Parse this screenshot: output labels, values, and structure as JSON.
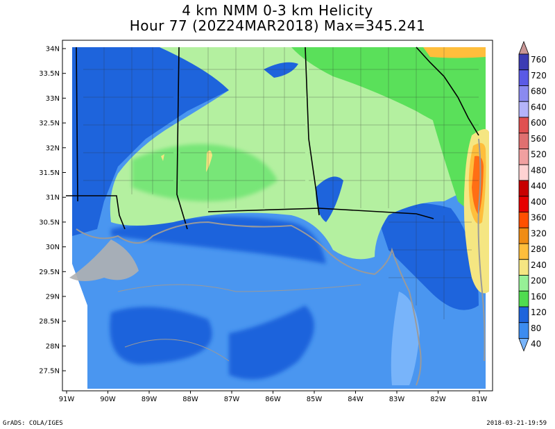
{
  "title": {
    "line1": "4 km NMM 0-3 km Helicity",
    "line2": "Hour 77 (20Z24MAR2018) Max=345.241"
  },
  "map": {
    "lat_labels": [
      "34N",
      "33.5N",
      "33N",
      "32.5N",
      "32N",
      "31.5N",
      "31N",
      "30.5N",
      "30N",
      "29.5N",
      "29N",
      "28.5N",
      "28N",
      "27.5N"
    ],
    "lon_labels": [
      "91W",
      "90W",
      "89W",
      "88W",
      "87W",
      "86W",
      "85W",
      "84W",
      "83W",
      "82W",
      "81W"
    ]
  },
  "colorbar": {
    "levels": [
      "760",
      "720",
      "680",
      "640",
      "600",
      "560",
      "520",
      "480",
      "440",
      "400",
      "360",
      "320",
      "280",
      "240",
      "200",
      "160",
      "120",
      "80",
      "40"
    ],
    "colors": [
      "#3c3cb4",
      "#5a5ae6",
      "#8a8af0",
      "#b4b4fa",
      "#e05050",
      "#e07070",
      "#f0a0a0",
      "#ffd2d2",
      "#c80000",
      "#e60000",
      "#ff5000",
      "#f08c14",
      "#ffbe3c",
      "#f5e682",
      "#96f096",
      "#50dc50",
      "#1e64dc",
      "#3c8cf0",
      "#78b4fa"
    ],
    "top_color": "#c89696"
  },
  "footer": {
    "left": "GrADS: COLA/IGES",
    "right": "2018-03-21-19:59"
  }
}
